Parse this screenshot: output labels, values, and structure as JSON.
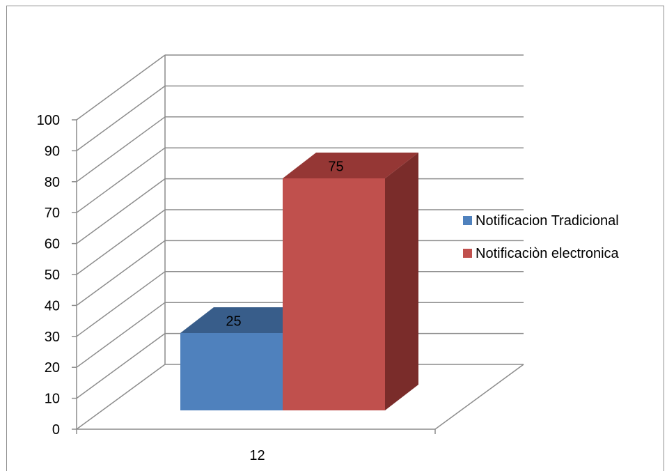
{
  "chart_data": {
    "type": "bar",
    "categories": [
      "12"
    ],
    "series": [
      {
        "name": "Notificacion Tradicional",
        "values": [
          25
        ],
        "color": "#4F81BD",
        "top_color": "#385D8A",
        "side_color": "#2F4F74"
      },
      {
        "name": "Notificaciòn electronica",
        "values": [
          75
        ],
        "color": "#C0504D",
        "top_color": "#953735",
        "side_color": "#7A2C2A"
      }
    ],
    "ylim": [
      0,
      100
    ],
    "yticks": [
      "0",
      "10",
      "20",
      "30",
      "40",
      "50",
      "60",
      "70",
      "80",
      "90",
      "100"
    ],
    "grid": true,
    "legend_position": "right",
    "style": "3d-clustered-column",
    "data_labels": true
  }
}
